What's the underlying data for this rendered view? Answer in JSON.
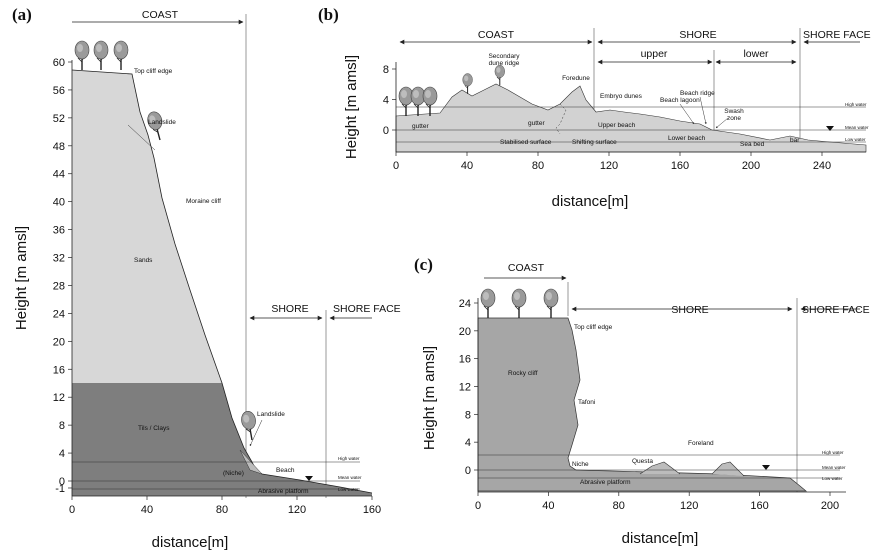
{
  "panel_a": {
    "label": "(a)",
    "coast": "COAST",
    "shore": "SHORE",
    "shore_face": "SHORE FACE",
    "ylabel": "Height [m amsl]",
    "xlabel": "distance[m]",
    "yticks": [
      "60",
      "56",
      "52",
      "48",
      "44",
      "40",
      "36",
      "32",
      "28",
      "24",
      "20",
      "16",
      "12",
      "8",
      "4",
      "0",
      "-1"
    ],
    "xticks": [
      "0",
      "40",
      "80",
      "120",
      "160"
    ],
    "labels": {
      "top_cliff_edge": "Top cliff edge",
      "landslide_top": "Landslide",
      "moraine_cliff": "Moraine cliff",
      "sands": "Sands",
      "tills": "Tils / Clays",
      "landslide_bottom": "Landslide",
      "niche": "(Niche)",
      "beach": "Beach",
      "abrasive": "Abrasive platform",
      "high_water": "High water",
      "mean_water": "Mean water",
      "low_water": "Low water"
    }
  },
  "panel_b": {
    "label": "(b)",
    "coast": "COAST",
    "shore": "SHORE",
    "upper": "upper",
    "lower": "lower",
    "shore_face": "SHORE FACE",
    "ylabel": "Height [m amsl]",
    "xlabel": "distance[m]",
    "yticks": [
      "8",
      "4",
      "0"
    ],
    "xticks": [
      "0",
      "40",
      "80",
      "120",
      "160",
      "200",
      "240"
    ],
    "labels": {
      "secondary": "Secondary",
      "dune_ridge": "dune ridge",
      "foredune": "Foredune",
      "embryo": "Embryo dunes",
      "beach_ridge": "Beach ridge",
      "beach_lagoon": "Beach lagoon",
      "swash": "Swash",
      "zone": "zone",
      "gutter1": "gutter",
      "gutter2": "gutter",
      "upper_beach": "Upper beach",
      "lower_beach": "Lower beach",
      "stabilised": "Stabilised surface",
      "shifting": "Shifting surface",
      "sea_bed": "Sea bed",
      "bar": "bar",
      "high_water": "High water",
      "mean_water": "Mean water",
      "low_water": "Low water"
    }
  },
  "panel_c": {
    "label": "(c)",
    "coast": "COAST",
    "shore": "SHORE",
    "shore_face": "SHORE FACE",
    "ylabel": "Height [m amsl]",
    "xlabel": "distance[m]",
    "yticks": [
      "24",
      "20",
      "16",
      "12",
      "8",
      "4",
      "0"
    ],
    "xticks": [
      "0",
      "40",
      "80",
      "120",
      "160",
      "200"
    ],
    "labels": {
      "top_cliff_edge": "Top cliff edge",
      "rocky_cliff": "Rocky cliff",
      "tafoni": "Tafoni",
      "foreland": "Foreland",
      "niche": "Niche",
      "questa": "Questa",
      "abrasive": "Abrasive platform",
      "high_water": "High water",
      "mean_water": "Mean water",
      "low_water": "Low water"
    }
  }
}
